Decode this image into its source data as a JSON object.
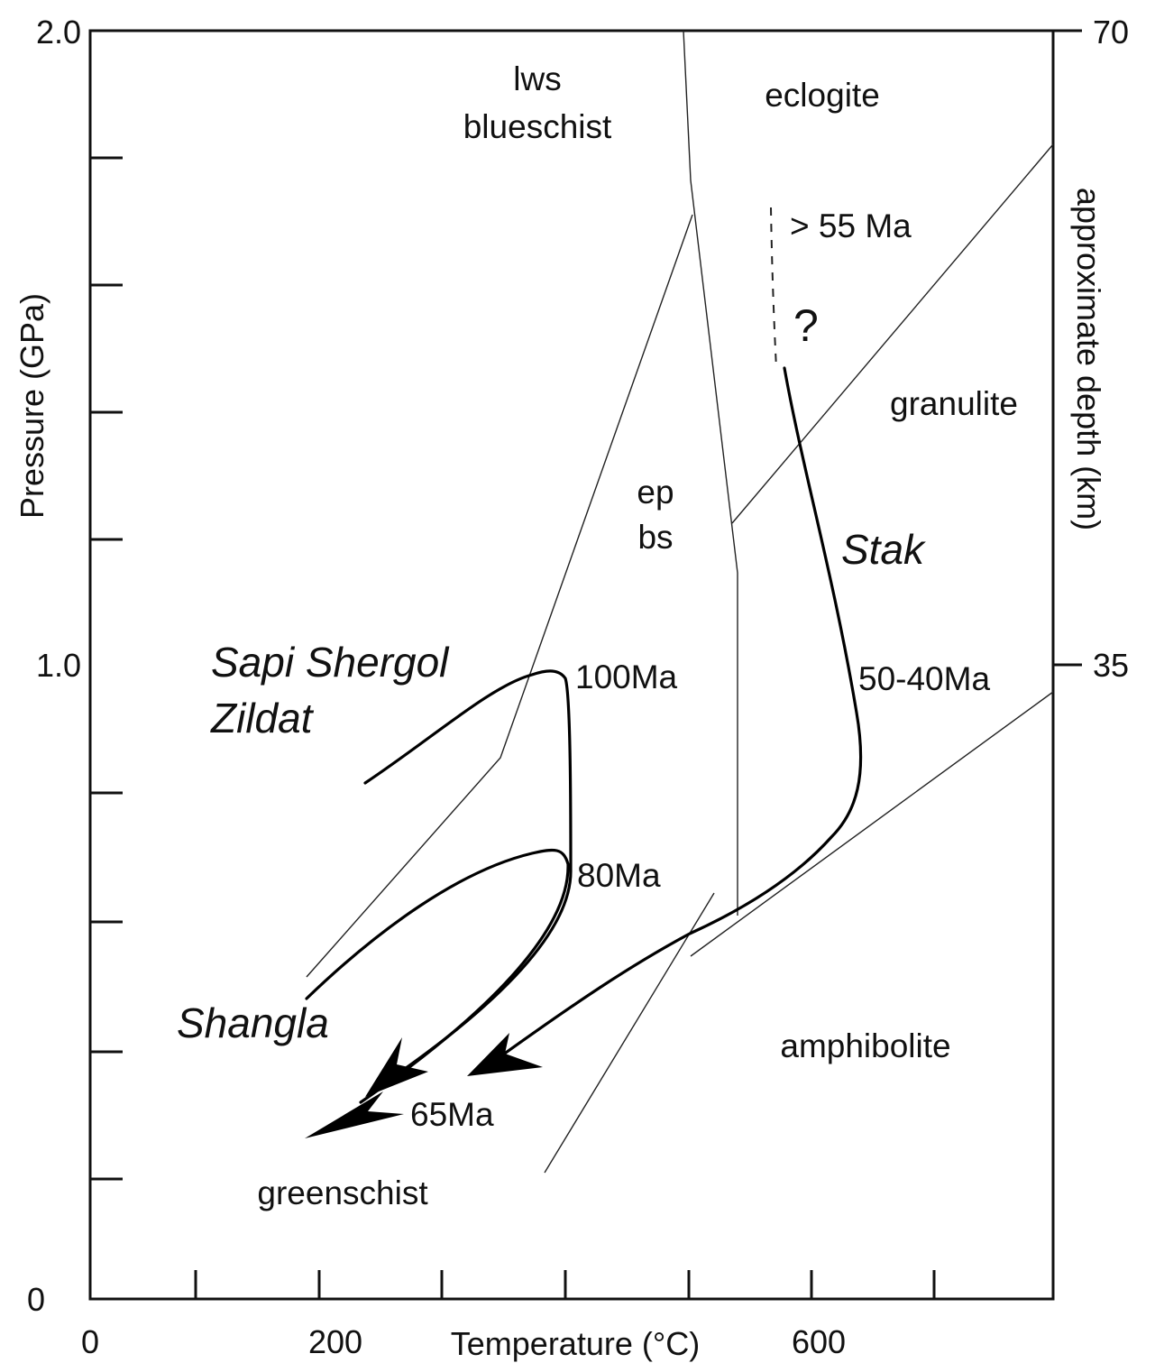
{
  "axes": {
    "x_title": "Temperature (°C)",
    "y_left_title": "Pressure (GPa)",
    "y_right_title": "approximate depth (km)",
    "x_tick_labels": [
      "0",
      "200",
      "600"
    ],
    "y_left_tick_labels": [
      "0",
      "1.0",
      "2.0"
    ],
    "y_right_tick_labels": [
      "35",
      "70"
    ]
  },
  "facies": {
    "lws_blueschist": [
      "lws",
      "blueschist"
    ],
    "eclogite": "eclogite",
    "ep_bs": [
      "ep",
      "bs"
    ],
    "granulite": "granulite",
    "amphibolite": "amphibolite",
    "greenschist": "greenschist"
  },
  "localities": {
    "sapi_shergol_zildat": [
      "Sapi Shergol",
      "Zildat"
    ],
    "shangla": "Shangla",
    "stak": "Stak"
  },
  "ages": {
    "gt55": "> 55 Ma",
    "question": "?",
    "a100": "100Ma",
    "a80": "80Ma",
    "a65": "65Ma",
    "a5040": "50-40Ma"
  }
}
